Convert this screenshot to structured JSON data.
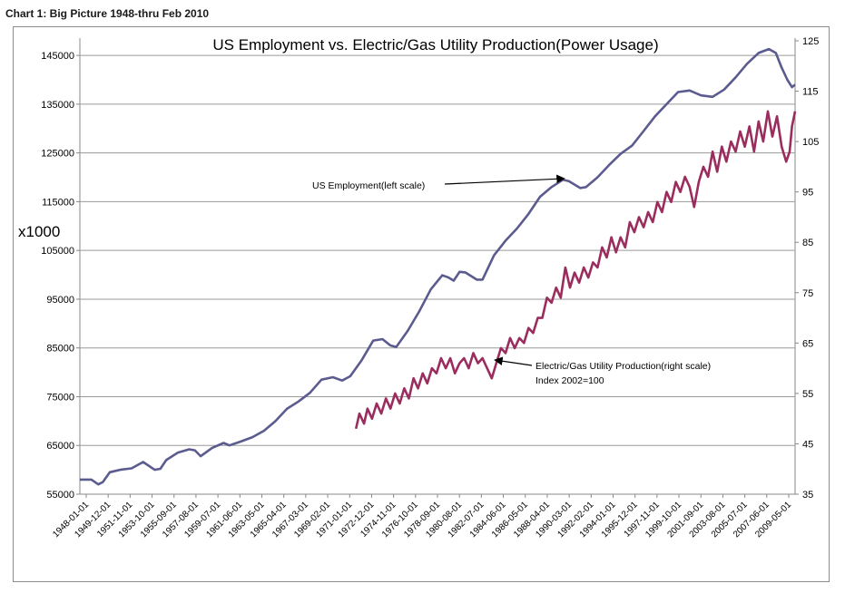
{
  "page": {
    "heading": "Chart 1: Big Picture 1948-thru Feb 2010"
  },
  "chart_data": {
    "type": "line",
    "title": "US Employment vs. Electric/Gas Utility Production(Power Usage)",
    "ylabel_left": "x1000",
    "y_left_ticks": [
      "55000",
      "65000",
      "75000",
      "85000",
      "95000",
      "105000",
      "115000",
      "125000",
      "135000",
      "145000"
    ],
    "ylim_left": [
      55000,
      148000
    ],
    "y_right_ticks": [
      "35",
      "45",
      "55",
      "65",
      "75",
      "85",
      "95",
      "105",
      "115",
      "125"
    ],
    "ylim_right": [
      35,
      125
    ],
    "x_ticks": [
      "1948-01-01",
      "1949-12-01",
      "1951-11-01",
      "1953-10-01",
      "1955-09-01",
      "1957-08-01",
      "1959-07-01",
      "1961-06-01",
      "1963-05-01",
      "1965-04-01",
      "1967-03-01",
      "1969-02-01",
      "1971-01-01",
      "1972-12-01",
      "1974-11-01",
      "1976-10-01",
      "1978-09-01",
      "1980-08-01",
      "1982-07-01",
      "1984-06-01",
      "1986-05-01",
      "1988-04-01",
      "1990-03-01",
      "1992-02-01",
      "1994-01-01",
      "1995-12-01",
      "1997-11-01",
      "1999-10-01",
      "2001-09-01",
      "2003-08-01",
      "2005-07-01",
      "2007-06-01",
      "2009-05-01"
    ],
    "x_range": [
      1948.0,
      2010.17
    ],
    "grid": "horizontal",
    "series": [
      {
        "name": "US Employment(left scale)",
        "axis": "left",
        "color": "#5b5b8f",
        "points": [
          [
            1948.0,
            58000
          ],
          [
            1949.0,
            58000
          ],
          [
            1949.6,
            57000
          ],
          [
            1950.0,
            57500
          ],
          [
            1950.6,
            59500
          ],
          [
            1951.5,
            60000
          ],
          [
            1952.5,
            60300
          ],
          [
            1953.5,
            61600
          ],
          [
            1954.5,
            60000
          ],
          [
            1955.0,
            60200
          ],
          [
            1955.5,
            62000
          ],
          [
            1956.5,
            63500
          ],
          [
            1957.5,
            64200
          ],
          [
            1958.0,
            64000
          ],
          [
            1958.5,
            62800
          ],
          [
            1959.5,
            64500
          ],
          [
            1960.5,
            65500
          ],
          [
            1961.0,
            65000
          ],
          [
            1962.0,
            65800
          ],
          [
            1963.0,
            66700
          ],
          [
            1964.0,
            68000
          ],
          [
            1965.0,
            70000
          ],
          [
            1966.0,
            72500
          ],
          [
            1967.0,
            74000
          ],
          [
            1968.0,
            75800
          ],
          [
            1969.0,
            78500
          ],
          [
            1970.0,
            79000
          ],
          [
            1970.8,
            78300
          ],
          [
            1971.5,
            79200
          ],
          [
            1972.5,
            82500
          ],
          [
            1973.5,
            86500
          ],
          [
            1974.3,
            86800
          ],
          [
            1975.0,
            85500
          ],
          [
            1975.5,
            85200
          ],
          [
            1976.5,
            88500
          ],
          [
            1977.5,
            92500
          ],
          [
            1978.5,
            97000
          ],
          [
            1979.5,
            99900
          ],
          [
            1980.0,
            99500
          ],
          [
            1980.5,
            98800
          ],
          [
            1981.0,
            100600
          ],
          [
            1981.5,
            100500
          ],
          [
            1982.5,
            99000
          ],
          [
            1983.0,
            99000
          ],
          [
            1984.0,
            104000
          ],
          [
            1985.0,
            107000
          ],
          [
            1986.0,
            109500
          ],
          [
            1987.0,
            112500
          ],
          [
            1988.0,
            116000
          ],
          [
            1989.0,
            118000
          ],
          [
            1990.0,
            119500
          ],
          [
            1990.5,
            119200
          ],
          [
            1991.5,
            117800
          ],
          [
            1992.0,
            118000
          ],
          [
            1993.0,
            120000
          ],
          [
            1994.0,
            122500
          ],
          [
            1995.0,
            124800
          ],
          [
            1996.0,
            126500
          ],
          [
            1997.0,
            129500
          ],
          [
            1998.0,
            132500
          ],
          [
            1999.0,
            135000
          ],
          [
            2000.0,
            137500
          ],
          [
            2001.0,
            137800
          ],
          [
            2002.0,
            136800
          ],
          [
            2003.0,
            136500
          ],
          [
            2004.0,
            138000
          ],
          [
            2005.0,
            140500
          ],
          [
            2006.0,
            143300
          ],
          [
            2007.0,
            145500
          ],
          [
            2007.9,
            146300
          ],
          [
            2008.5,
            145500
          ],
          [
            2009.0,
            142500
          ],
          [
            2009.5,
            140000
          ],
          [
            2009.9,
            138500
          ],
          [
            2010.17,
            139000
          ]
        ]
      },
      {
        "name": "Electric/Gas Utility Production(right scale)",
        "axis": "right",
        "color": "#9b2d5e",
        "annotation_line2": "Index 2002=100",
        "points": [
          [
            1972.0,
            48
          ],
          [
            1972.3,
            51
          ],
          [
            1972.7,
            49
          ],
          [
            1973.0,
            52
          ],
          [
            1973.4,
            50
          ],
          [
            1973.8,
            53
          ],
          [
            1974.2,
            51
          ],
          [
            1974.6,
            54
          ],
          [
            1975.0,
            52
          ],
          [
            1975.4,
            55
          ],
          [
            1975.8,
            53
          ],
          [
            1976.2,
            56
          ],
          [
            1976.6,
            54
          ],
          [
            1977.0,
            58
          ],
          [
            1977.4,
            56
          ],
          [
            1977.8,
            59
          ],
          [
            1978.2,
            57
          ],
          [
            1978.6,
            60
          ],
          [
            1979.0,
            59
          ],
          [
            1979.4,
            62
          ],
          [
            1979.8,
            60
          ],
          [
            1980.2,
            62
          ],
          [
            1980.6,
            59
          ],
          [
            1981.0,
            61
          ],
          [
            1981.4,
            62
          ],
          [
            1981.8,
            60
          ],
          [
            1982.2,
            63
          ],
          [
            1982.6,
            61
          ],
          [
            1983.0,
            62
          ],
          [
            1983.4,
            60
          ],
          [
            1983.8,
            58
          ],
          [
            1984.2,
            61
          ],
          [
            1984.6,
            64
          ],
          [
            1985.0,
            63
          ],
          [
            1985.4,
            66
          ],
          [
            1985.8,
            64
          ],
          [
            1986.2,
            66
          ],
          [
            1986.6,
            65
          ],
          [
            1987.0,
            68
          ],
          [
            1987.4,
            67
          ],
          [
            1987.8,
            70
          ],
          [
            1988.2,
            70
          ],
          [
            1988.6,
            74
          ],
          [
            1989.0,
            73
          ],
          [
            1989.4,
            76
          ],
          [
            1989.8,
            74
          ],
          [
            1990.2,
            80
          ],
          [
            1990.6,
            76
          ],
          [
            1991.0,
            79
          ],
          [
            1991.4,
            77
          ],
          [
            1991.8,
            80
          ],
          [
            1992.2,
            78
          ],
          [
            1992.6,
            81
          ],
          [
            1993.0,
            80
          ],
          [
            1993.4,
            84
          ],
          [
            1993.8,
            82
          ],
          [
            1994.2,
            86
          ],
          [
            1994.6,
            83
          ],
          [
            1995.0,
            86
          ],
          [
            1995.4,
            84
          ],
          [
            1995.8,
            89
          ],
          [
            1996.2,
            87
          ],
          [
            1996.6,
            90
          ],
          [
            1997.0,
            88
          ],
          [
            1997.4,
            91
          ],
          [
            1997.8,
            89
          ],
          [
            1998.2,
            93
          ],
          [
            1998.6,
            91
          ],
          [
            1999.0,
            95
          ],
          [
            1999.4,
            93
          ],
          [
            1999.8,
            97
          ],
          [
            2000.2,
            95
          ],
          [
            2000.6,
            98
          ],
          [
            2001.0,
            96
          ],
          [
            2001.4,
            92
          ],
          [
            2001.8,
            97
          ],
          [
            2002.2,
            100
          ],
          [
            2002.6,
            98
          ],
          [
            2003.0,
            103
          ],
          [
            2003.4,
            99
          ],
          [
            2003.8,
            104
          ],
          [
            2004.2,
            101
          ],
          [
            2004.6,
            105
          ],
          [
            2005.0,
            103
          ],
          [
            2005.4,
            107
          ],
          [
            2005.8,
            104
          ],
          [
            2006.2,
            108
          ],
          [
            2006.6,
            103
          ],
          [
            2007.0,
            109
          ],
          [
            2007.4,
            105
          ],
          [
            2007.8,
            111
          ],
          [
            2008.2,
            106
          ],
          [
            2008.6,
            110
          ],
          [
            2009.0,
            104
          ],
          [
            2009.4,
            101
          ],
          [
            2009.7,
            103
          ],
          [
            2009.9,
            108
          ],
          [
            2010.17,
            111
          ]
        ]
      }
    ],
    "annotations": [
      {
        "text": "US Employment(left scale)",
        "target_x": 1990.1,
        "target_y_left": 119000
      },
      {
        "text": "Electric/Gas Utility Production(right scale)",
        "target_x": 1984.0,
        "target_y_right": 62
      }
    ]
  }
}
